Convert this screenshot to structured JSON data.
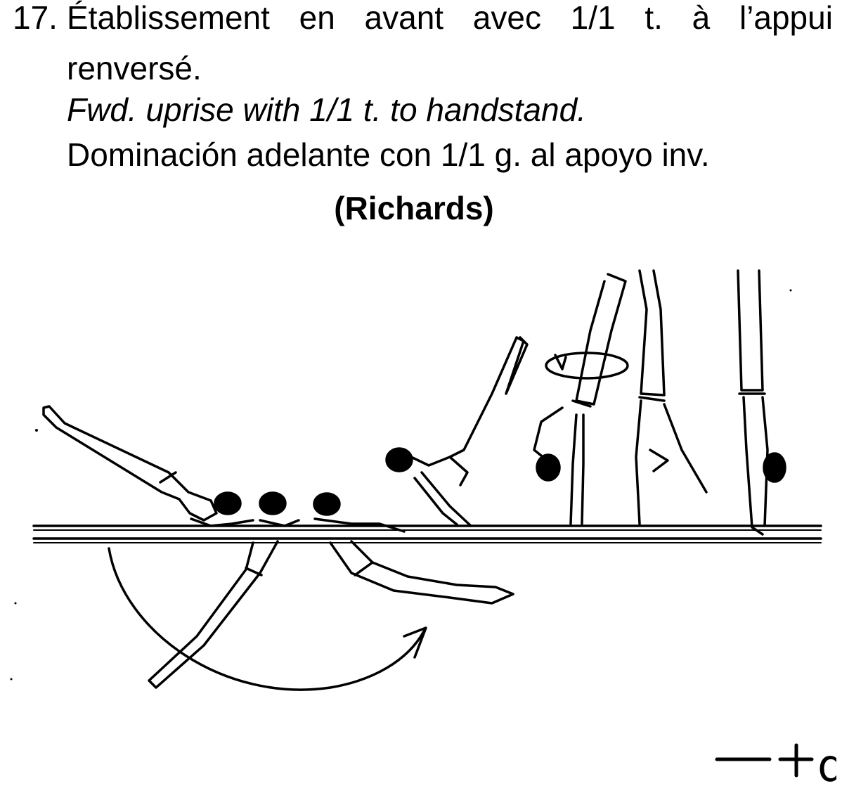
{
  "element": {
    "number": "17.",
    "french_title_words": [
      "Établissement",
      "en",
      "avant",
      "avec",
      "1/1",
      "t.",
      "à",
      "l’appui"
    ],
    "french_title_line2": "renversé.",
    "english_title": "Fwd. uprise with 1/1 t. to handstand.",
    "spanish_title": "Dominación adelante con 1/1 g. al apoyo inv.",
    "named_after": "(Richards)"
  },
  "figure": {
    "icon": "gymnast-parallel-bars-sequence",
    "line_color": "#000000"
  },
  "symbol": {
    "icon": "element-symbol-glyph",
    "text": "d"
  }
}
